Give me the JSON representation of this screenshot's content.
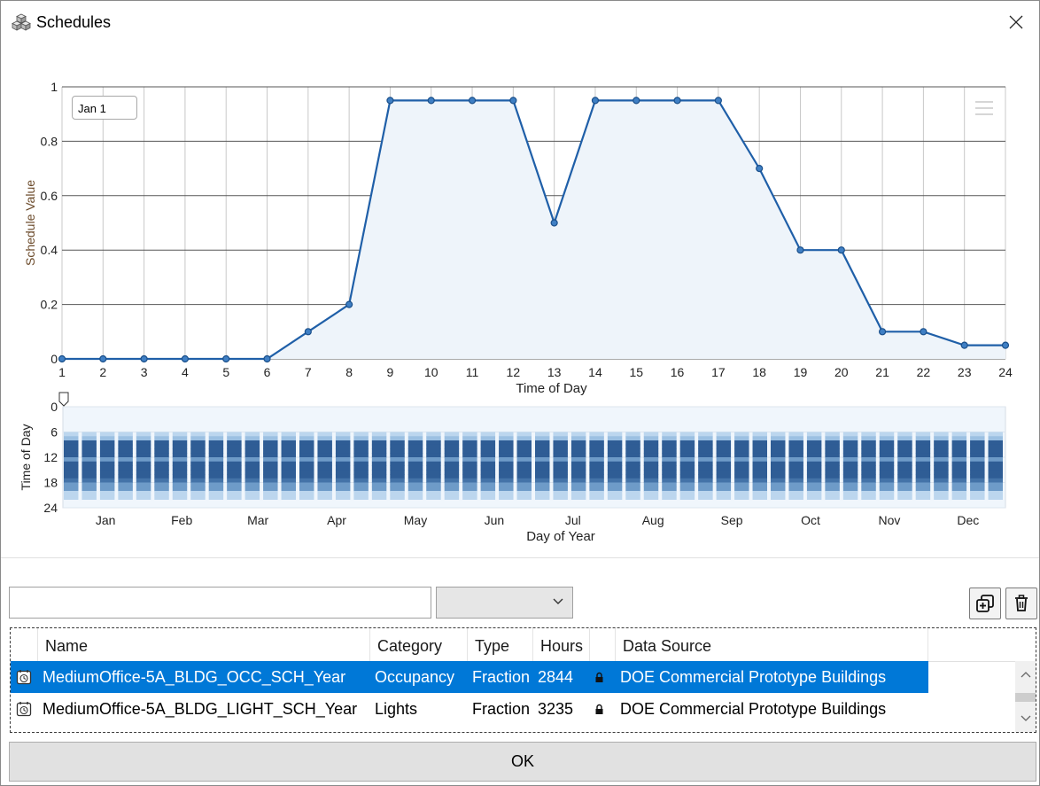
{
  "window": {
    "title": "Schedules",
    "title_icon": "cubes-icon",
    "close_icon": "close-icon"
  },
  "colors": {
    "accent": "#0078d7",
    "series": "#1f5fa8",
    "fill": "#eef4fa"
  },
  "chart_data": [
    {
      "type": "area",
      "title": "",
      "xlabel": "Time of Day",
      "ylabel": "Schedule Value",
      "xlim": [
        1,
        24
      ],
      "ylim": [
        0,
        1
      ],
      "x": [
        1,
        2,
        3,
        4,
        5,
        6,
        7,
        8,
        9,
        10,
        11,
        12,
        13,
        14,
        15,
        16,
        17,
        18,
        19,
        20,
        21,
        22,
        23,
        24
      ],
      "y": [
        0,
        0,
        0,
        0,
        0,
        0,
        0.1,
        0.2,
        0.95,
        0.95,
        0.95,
        0.95,
        0.5,
        0.95,
        0.95,
        0.95,
        0.95,
        0.7,
        0.4,
        0.4,
        0.1,
        0.1,
        0.05,
        0.05
      ],
      "yticks": [
        "0",
        "0.2",
        "0.4",
        "0.6",
        "0.8",
        "1"
      ],
      "xticks": [
        "1",
        "2",
        "3",
        "4",
        "5",
        "6",
        "7",
        "8",
        "9",
        "10",
        "11",
        "12",
        "13",
        "14",
        "15",
        "16",
        "17",
        "18",
        "19",
        "20",
        "21",
        "22",
        "23",
        "24"
      ]
    },
    {
      "type": "heatmap",
      "xlabel": "Day of Year",
      "ylabel": "Time of Day",
      "yticks": [
        "0",
        "6",
        "12",
        "18",
        "24"
      ],
      "month_labels": [
        "Jan",
        "Feb",
        "Mar",
        "Apr",
        "May",
        "Jun",
        "Jul",
        "Aug",
        "Sep",
        "Oct",
        "Nov",
        "Dec"
      ]
    }
  ],
  "date_selector": {
    "value": "Jan 1"
  },
  "chart_menu_icon": "hamburger-menu-icon",
  "search": {
    "value": "",
    "placeholder": ""
  },
  "filter": {
    "selected": ""
  },
  "toolbar": {
    "duplicate_icon": "duplicate-icon",
    "delete_icon": "trash-icon"
  },
  "table": {
    "columns": [
      "Name",
      "Category",
      "Type",
      "Hours",
      "",
      "Data Source"
    ],
    "rows": [
      {
        "icon": "schedule-icon",
        "name": "MediumOffice-5A_BLDG_OCC_SCH_Year",
        "category": "Occupancy",
        "type": "Fraction",
        "hours": "2844",
        "locked": "lock-icon",
        "source": "DOE Commercial Prototype Buildings"
      },
      {
        "icon": "schedule-icon",
        "name": "MediumOffice-5A_BLDG_LIGHT_SCH_Year",
        "category": "Lights",
        "type": "Fraction",
        "hours": "3235",
        "locked": "lock-icon",
        "source": "DOE Commercial Prototype Buildings"
      }
    ]
  },
  "ok_button": {
    "label": "OK"
  }
}
